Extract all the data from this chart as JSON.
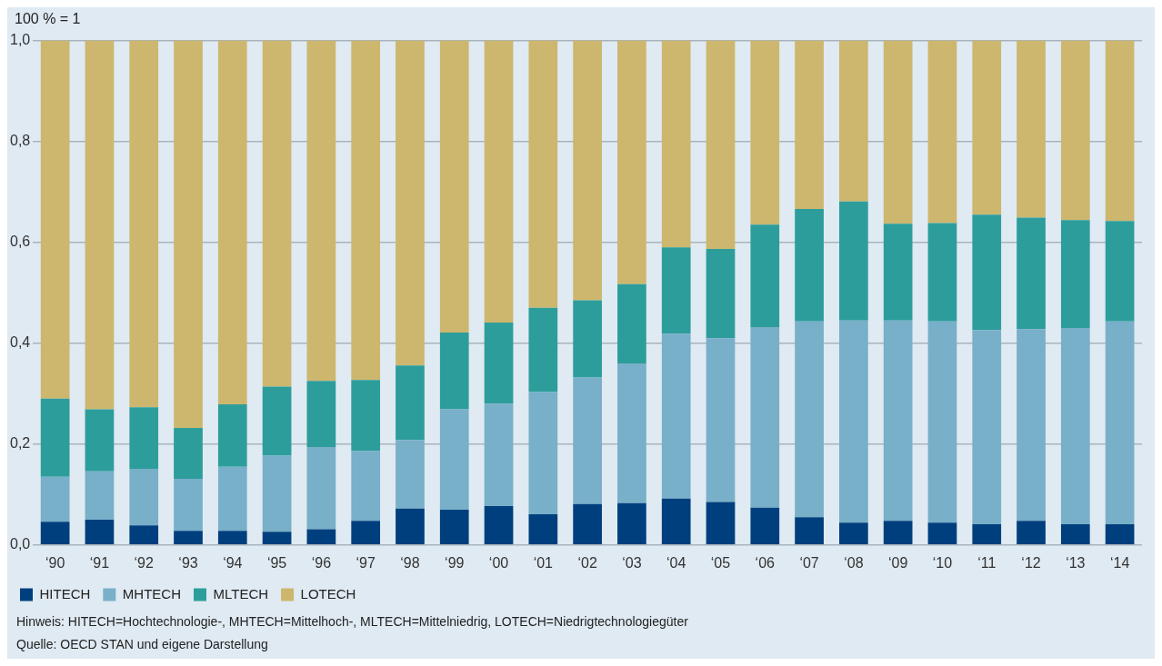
{
  "chart_data": {
    "type": "bar",
    "stacked": true,
    "ylabel": "100 % = 1",
    "categories": [
      "‘90",
      "‘91",
      "‘92",
      "‘93",
      "‘94",
      "‘95",
      "‘96",
      "‘97",
      "‘98",
      "‘99",
      "‘00",
      "‘01",
      "‘02",
      "‘03",
      "‘04",
      "‘05",
      "‘06",
      "‘07",
      "‘08",
      "‘09",
      "‘10",
      "‘11",
      "‘12",
      "‘13",
      "‘14"
    ],
    "series": [
      {
        "name": "HITECH",
        "color": "#003f7d",
        "values": [
          0.046,
          0.05,
          0.039,
          0.028,
          0.028,
          0.026,
          0.031,
          0.048,
          0.072,
          0.07,
          0.077,
          0.061,
          0.081,
          0.083,
          0.092,
          0.085,
          0.074,
          0.055,
          0.044,
          0.048,
          0.044,
          0.041,
          0.048,
          0.041,
          0.041
        ]
      },
      {
        "name": "MHTECH",
        "color": "#78afc9",
        "values": [
          0.089,
          0.096,
          0.112,
          0.103,
          0.127,
          0.151,
          0.163,
          0.138,
          0.136,
          0.199,
          0.203,
          0.242,
          0.251,
          0.277,
          0.327,
          0.325,
          0.358,
          0.388,
          0.401,
          0.397,
          0.399,
          0.385,
          0.38,
          0.389,
          0.402
        ]
      },
      {
        "name": "MLTECH",
        "color": "#2d9d9b",
        "values": [
          0.155,
          0.123,
          0.122,
          0.101,
          0.124,
          0.137,
          0.131,
          0.141,
          0.148,
          0.152,
          0.161,
          0.167,
          0.153,
          0.157,
          0.171,
          0.177,
          0.203,
          0.223,
          0.236,
          0.192,
          0.195,
          0.229,
          0.221,
          0.214,
          0.199
        ]
      },
      {
        "name": "LOTECH",
        "color": "#cdb76e",
        "values": [
          0.71,
          0.731,
          0.727,
          0.768,
          0.721,
          0.686,
          0.675,
          0.673,
          0.644,
          0.579,
          0.559,
          0.53,
          0.515,
          0.483,
          0.41,
          0.413,
          0.365,
          0.334,
          0.319,
          0.363,
          0.362,
          0.345,
          0.351,
          0.356,
          0.358
        ]
      }
    ],
    "ylim": [
      0,
      1
    ],
    "yticks": [
      {
        "value": 0,
        "label": "0,0"
      },
      {
        "value": 0.2,
        "label": "0,2"
      },
      {
        "value": 0.4,
        "label": "0,4"
      },
      {
        "value": 0.6,
        "label": "0,6"
      },
      {
        "value": 0.8,
        "label": "0,8"
      },
      {
        "value": 1,
        "label": "1,0"
      }
    ],
    "grid": "y",
    "legend": "bottom left",
    "annotations": [
      "Hinweis: HITECH=Hochtechnologie-, MHTECH=Mittelhoch-, MLTECH=Mittelniedrig, LOTECH=Niedrigtechnologiegüter",
      "Quelle: OECD STAN und eigene Darstellung"
    ]
  }
}
